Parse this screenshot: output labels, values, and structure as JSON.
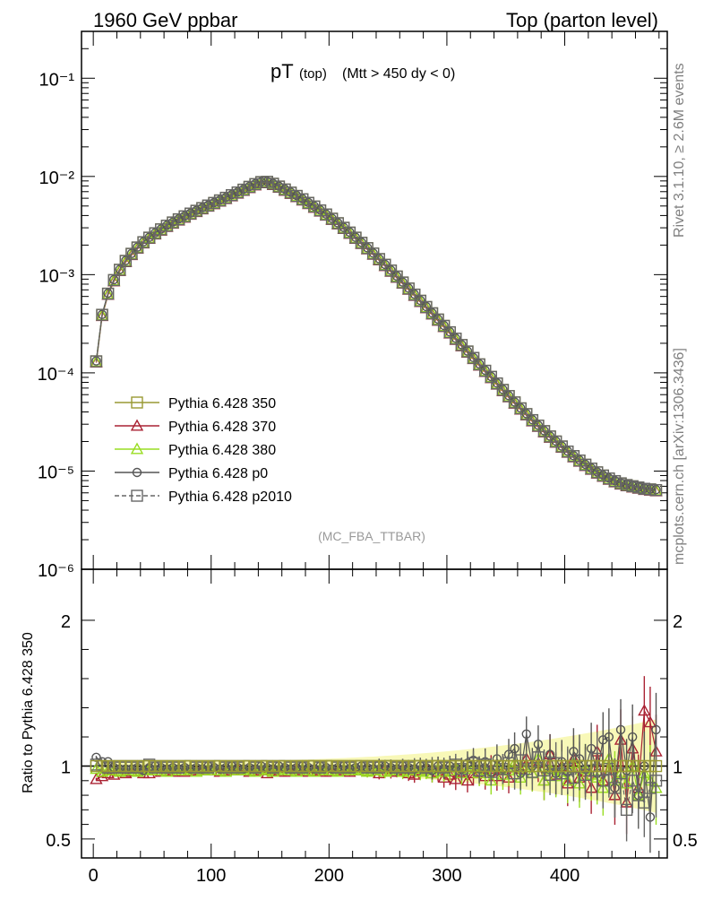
{
  "header": {
    "left": "1960 GeV ppbar",
    "right": "Top (parton level)"
  },
  "side_labels": {
    "version": "Rivet 3.1.10, ≥ 2.6M events",
    "source": "mcplots.cern.ch [arXiv:1306.3436]"
  },
  "chart_data": [
    {
      "panel": "main",
      "type": "line",
      "title": "pT",
      "title_sub": "(top)",
      "title_cut": "(Mtt > 450 dy < 0)",
      "analysis": "(MC_FBA_TTBAR)",
      "xlabel": "",
      "ylabel": "",
      "xlim": [
        -10,
        487
      ],
      "ylim": [
        1e-06,
        0.3
      ],
      "yscale": "log",
      "ytick_labels": [
        "10⁻⁶",
        "10⁻⁵",
        "10⁻⁴",
        "10⁻³",
        "10⁻²",
        "10⁻¹"
      ],
      "legend": [
        {
          "label": "Pythia 6.428 350",
          "color": "#999933",
          "marker": "square",
          "dashed": false
        },
        {
          "label": "Pythia 6.428 370",
          "color": "#aa2233",
          "marker": "triangle",
          "dashed": false
        },
        {
          "label": "Pythia 6.428 380",
          "color": "#99dd22",
          "marker": "triangle",
          "dashed": false
        },
        {
          "label": "Pythia 6.428 p0",
          "color": "#555555",
          "marker": "circle",
          "dashed": false
        },
        {
          "label": "Pythia 6.428 p2010",
          "color": "#666666",
          "marker": "square",
          "dashed": true
        }
      ],
      "x": [
        2.5,
        7.5,
        12.5,
        17.5,
        22.5,
        27.5,
        32.5,
        37.5,
        42.5,
        47.5,
        52.5,
        57.5,
        62.5,
        67.5,
        72.5,
        77.5,
        82.5,
        87.5,
        92.5,
        97.5,
        102.5,
        107.5,
        112.5,
        117.5,
        122.5,
        127.5,
        132.5,
        137.5,
        142.5,
        147.5,
        152.5,
        157.5,
        162.5,
        167.5,
        172.5,
        177.5,
        182.5,
        187.5,
        192.5,
        197.5,
        202.5,
        207.5,
        212.5,
        217.5,
        222.5,
        227.5,
        232.5,
        237.5,
        242.5,
        247.5,
        252.5,
        257.5,
        262.5,
        267.5,
        272.5,
        277.5,
        282.5,
        287.5,
        292.5,
        297.5,
        302.5,
        307.5,
        312.5,
        317.5,
        322.5,
        327.5,
        332.5,
        337.5,
        342.5,
        347.5,
        352.5,
        357.5,
        362.5,
        367.5,
        372.5,
        377.5,
        382.5,
        387.5,
        392.5,
        397.5,
        402.5,
        407.5,
        412.5,
        417.5,
        422.5,
        427.5,
        432.5,
        437.5,
        442.5,
        447.5,
        452.5,
        457.5,
        462.5,
        467.5,
        472.5,
        477.5
      ],
      "reference_values": [
        0.000131,
        0.00039,
        0.00064,
        0.00088,
        0.00112,
        0.00138,
        0.00163,
        0.00189,
        0.00214,
        0.00238,
        0.00264,
        0.00289,
        0.00315,
        0.0034,
        0.00366,
        0.00392,
        0.00419,
        0.00447,
        0.00476,
        0.00506,
        0.00537,
        0.0057,
        0.00606,
        0.00645,
        0.00687,
        0.00733,
        0.00783,
        0.00835,
        0.00876,
        0.00881,
        0.00842,
        0.00789,
        0.00736,
        0.00684,
        0.00633,
        0.00585,
        0.00538,
        0.00494,
        0.00451,
        0.0041,
        0.00371,
        0.00334,
        0.003,
        0.00268,
        0.00238,
        0.00211,
        0.00186,
        0.00164,
        0.00144,
        0.00126,
        0.0011,
        0.000957,
        0.000832,
        0.000722,
        0.000626,
        0.000542,
        0.000468,
        0.000404,
        0.000349,
        0.000301,
        0.000259,
        0.000223,
        0.000192,
        0.000165,
        0.000142,
        0.000122,
        0.000105,
        9.1e-05,
        7.8e-05,
        6.7e-05,
        5.8e-05,
        5e-05,
        4.35e-05,
        3.8e-05,
        3.3e-05,
        2.9e-05,
        2.55e-05,
        2.25e-05,
        2e-05,
        1.78e-05,
        1.58e-05,
        1.42e-05,
        1.28e-05,
        1.16e-05,
        1.06e-05,
        9.7e-06,
        9e-06,
        8.4e-06,
        7.9e-06,
        7.5e-06,
        7.2e-06,
        7e-06,
        6.8e-06,
        6.6e-06,
        6.5e-06,
        6.4e-06
      ]
    },
    {
      "panel": "ratio",
      "type": "line",
      "ylabel": "Ratio to Pythia 6.428 350",
      "xlabel": "",
      "xlim": [
        -10,
        487
      ],
      "ylim": [
        0.37,
        2.35
      ],
      "xticks": [
        0,
        100,
        200,
        300,
        400
      ],
      "yticks": [
        0.5,
        1,
        2
      ],
      "ytick_labels": [
        "0.5",
        "1",
        "2"
      ],
      "x": [
        2.5,
        7.5,
        12.5,
        17.5,
        22.5,
        27.5,
        32.5,
        37.5,
        42.5,
        47.5,
        52.5,
        57.5,
        62.5,
        67.5,
        72.5,
        77.5,
        82.5,
        87.5,
        92.5,
        97.5,
        102.5,
        107.5,
        112.5,
        117.5,
        122.5,
        127.5,
        132.5,
        137.5,
        142.5,
        147.5,
        152.5,
        157.5,
        162.5,
        167.5,
        172.5,
        177.5,
        182.5,
        187.5,
        192.5,
        197.5,
        202.5,
        207.5,
        212.5,
        217.5,
        222.5,
        227.5,
        232.5,
        237.5,
        242.5,
        247.5,
        252.5,
        257.5,
        262.5,
        267.5,
        272.5,
        277.5,
        282.5,
        287.5,
        292.5,
        297.5,
        302.5,
        307.5,
        312.5,
        317.5,
        322.5,
        327.5,
        332.5,
        337.5,
        342.5,
        347.5,
        352.5,
        357.5,
        362.5,
        367.5,
        372.5,
        377.5,
        382.5,
        387.5,
        392.5,
        397.5,
        402.5,
        407.5,
        412.5,
        417.5,
        422.5,
        427.5,
        432.5,
        437.5,
        442.5,
        447.5,
        452.5,
        457.5,
        462.5,
        467.5,
        472.5,
        477.5
      ],
      "series": [
        {
          "name": "Pythia 6.428 370",
          "values": [
            0.91,
            0.93,
            0.95,
            0.94,
            0.96,
            0.95,
            0.96,
            0.96,
            0.95,
            0.95,
            0.97,
            0.96,
            0.97,
            0.96,
            0.97,
            0.96,
            0.97,
            0.97,
            0.98,
            0.97,
            0.97,
            0.96,
            0.97,
            0.97,
            0.98,
            0.97,
            0.96,
            0.97,
            0.97,
            0.95,
            0.97,
            0.96,
            0.97,
            0.96,
            0.98,
            0.97,
            0.96,
            0.97,
            0.96,
            0.97,
            0.96,
            0.97,
            0.98,
            0.96,
            0.97,
            0.97,
            0.96,
            0.97,
            0.95,
            0.98,
            0.96,
            0.97,
            0.98,
            0.95,
            0.94,
            0.97,
            0.98,
            0.95,
            0.96,
            0.92,
            0.94,
            0.91,
            0.96,
            0.9,
            0.95,
            0.96,
            0.93,
            0.98,
            0.93,
            0.97,
            0.92,
            1.02,
            0.98,
            1.05,
            0.95,
            1.02,
            0.9,
            1.08,
            0.94,
            1.0,
            0.88,
            1.05,
            0.92,
            0.96,
            0.85,
            1.1,
            0.9,
            1.05,
            0.8,
            1.18,
            0.75,
            1.12,
            0.85,
            1.38,
            1.3,
            1.1
          ]
        },
        {
          "name": "Pythia 6.428 380",
          "values": [
            0.98,
            0.96,
            0.97,
            0.97,
            0.96,
            0.97,
            0.97,
            0.96,
            0.97,
            0.98,
            0.97,
            0.97,
            0.96,
            0.98,
            0.97,
            0.97,
            0.98,
            0.96,
            0.97,
            0.98,
            0.97,
            0.97,
            0.96,
            0.98,
            0.97,
            0.98,
            0.97,
            0.96,
            0.98,
            0.97,
            0.96,
            0.98,
            0.97,
            0.97,
            0.96,
            0.98,
            0.97,
            0.96,
            0.98,
            0.97,
            0.97,
            0.96,
            0.98,
            0.97,
            0.98,
            0.97,
            0.96,
            0.97,
            0.98,
            0.96,
            0.97,
            0.98,
            0.96,
            0.97,
            0.98,
            0.96,
            0.97,
            0.95,
            0.98,
            0.96,
            0.97,
            0.99,
            0.95,
            0.98,
            1.0,
            0.95,
            0.97,
            0.9,
            1.0,
            0.94,
            0.97,
            1.02,
            0.92,
            0.99,
            0.95,
            1.05,
            0.9,
            0.98,
            0.93,
            0.96,
            0.9,
            1.02,
            0.88,
            0.98,
            0.94,
            0.92,
            0.85,
            1.05,
            0.9,
            0.95,
            0.88,
            1.0,
            0.8,
            0.95,
            0.9,
            0.85
          ]
        },
        {
          "name": "Pythia 6.428 p0",
          "values": [
            1.06,
            1.03,
            1.03,
            0.99,
            0.98,
            0.98,
            0.98,
            0.99,
            0.97,
            0.99,
            1.0,
            0.99,
            0.98,
            0.99,
            0.98,
            0.99,
            0.98,
            0.99,
            0.98,
            1.0,
            0.99,
            0.98,
            0.99,
            1.0,
            0.99,
            0.98,
            0.99,
            0.98,
            1.0,
            0.99,
            0.98,
            1.0,
            0.99,
            0.98,
            0.99,
            1.0,
            0.99,
            0.98,
            1.0,
            0.99,
            0.98,
            0.99,
            1.0,
            0.98,
            0.99,
            1.0,
            0.99,
            0.98,
            1.01,
            1.0,
            0.99,
            0.98,
            1.0,
            0.99,
            0.98,
            1.0,
            0.99,
            0.97,
            1.0,
            0.98,
            1.0,
            0.99,
            0.98,
            1.02,
            1.04,
            0.98,
            1.03,
            0.96,
            1.05,
            0.98,
            1.08,
            1.12,
            0.95,
            1.22,
            1.0,
            1.15,
            0.98,
            1.08,
            0.95,
            1.03,
            0.96,
            1.1,
            1.05,
            0.98,
            1.12,
            0.95,
            1.18,
            1.2,
            0.85,
            1.25,
            0.97,
            1.2,
            0.8,
            1.0,
            0.65,
            1.25
          ]
        },
        {
          "name": "Pythia 6.428 p2010",
          "values": [
            1.01,
            1.0,
            0.99,
            0.99,
            1.0,
            0.99,
            1.0,
            0.99,
            1.0,
            1.01,
            0.99,
            1.0,
            0.99,
            1.0,
            0.99,
            1.0,
            1.0,
            0.99,
            1.0,
            0.99,
            1.0,
            1.0,
            0.99,
            1.0,
            0.99,
            1.0,
            1.0,
            0.99,
            1.0,
            1.0,
            0.99,
            1.0,
            1.0,
            0.99,
            1.0,
            0.99,
            1.0,
            1.0,
            0.99,
            1.0,
            1.0,
            0.99,
            1.0,
            0.99,
            1.0,
            1.0,
            0.99,
            1.0,
            0.99,
            1.0,
            1.0,
            0.99,
            1.0,
            0.99,
            1.0,
            1.0,
            0.99,
            1.0,
            1.0,
            0.99,
            1.0,
            1.01,
            0.98,
            1.0,
            1.02,
            0.97,
            1.01,
            0.96,
            1.0,
            0.98,
            1.02,
            0.95,
            1.04,
            0.98,
            0.96,
            1.06,
            0.97,
            0.94,
            1.02,
            0.95,
            0.98,
            0.92,
            1.0,
            0.94,
            0.97,
            1.05,
            0.9,
            0.98,
            0.85,
            0.95,
            0.7,
            0.9,
            0.8,
            0.75,
            0.85,
            0.9
          ]
        }
      ]
    }
  ]
}
